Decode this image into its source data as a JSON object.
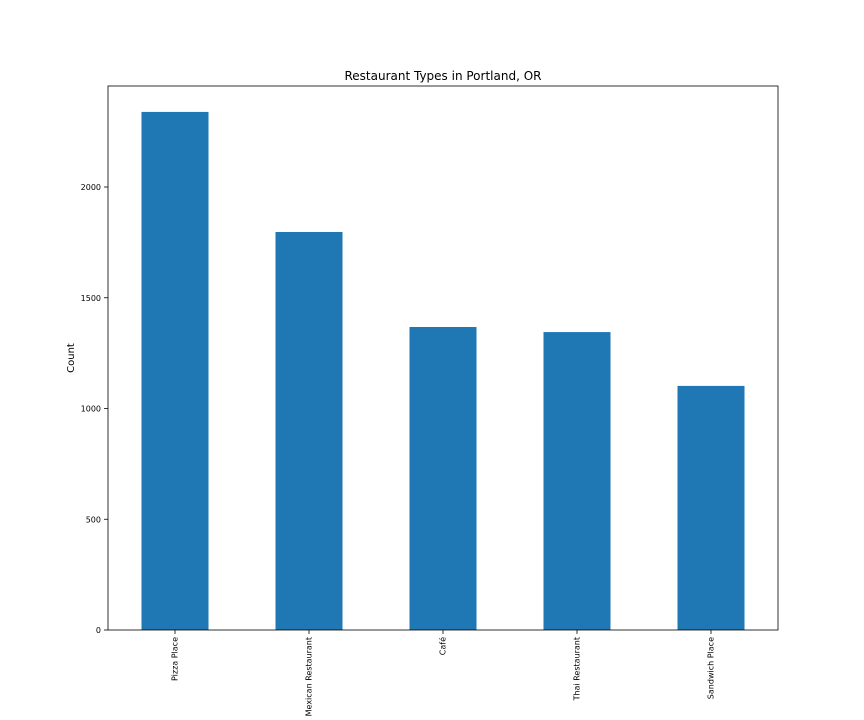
{
  "chart_data": {
    "type": "bar",
    "title": "Restaurant Types in Portland, OR",
    "ylabel": "Count",
    "categories": [
      "Pizza Place",
      "Mexican Restaurant",
      "Café",
      "Thai Restaurant",
      "Sandwich Place"
    ],
    "values": [
      2339,
      1797,
      1368,
      1345,
      1102
    ],
    "color": "#1f77b4",
    "ylim": [
      0,
      2456
    ],
    "yticks": [
      0,
      500,
      1000,
      1500,
      2000
    ],
    "grid": false
  }
}
